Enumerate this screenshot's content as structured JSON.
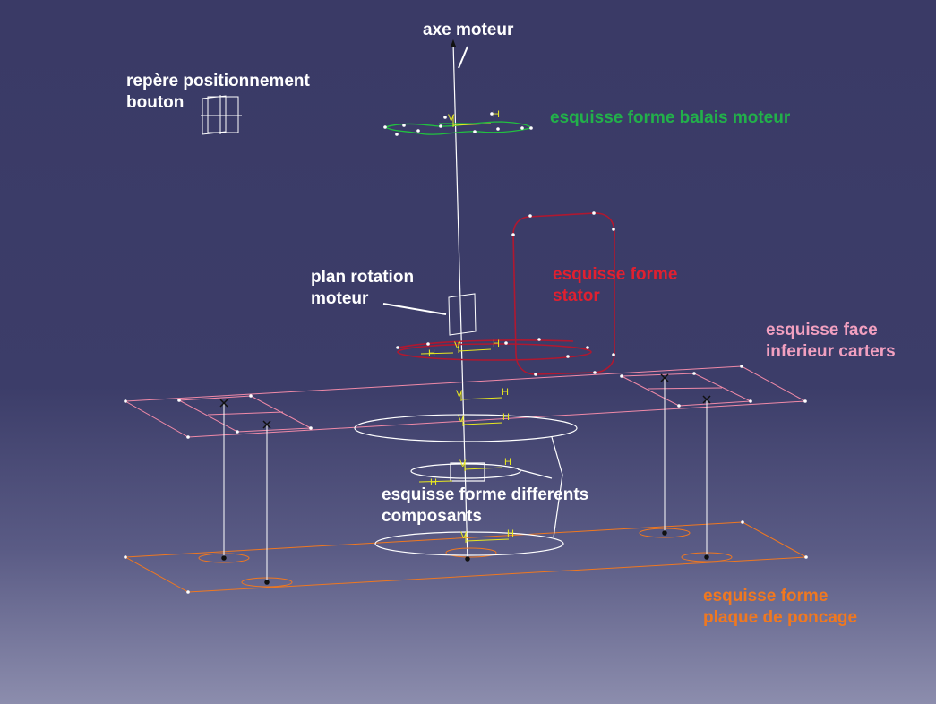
{
  "annotations": {
    "axe_moteur": {
      "text": "axe moteur",
      "color": "#ffffff"
    },
    "repere_bouton": {
      "text": "repère positionnement\nbouton",
      "color": "#ffffff"
    },
    "balais_moteur": {
      "text": "esquisse forme balais moteur",
      "color": "#22b04a"
    },
    "stator": {
      "text": "esquisse forme\nstator",
      "color": "#e02030"
    },
    "plan_rotation": {
      "text": "plan rotation\nmoteur",
      "color": "#ffffff"
    },
    "face_carters": {
      "text": "esquisse face\ninferieur carters",
      "color": "#f2a0c0"
    },
    "composants": {
      "text": "esquisse forme differents\ncomposants",
      "color": "#ffffff"
    },
    "plaque_poncage": {
      "text": "esquisse forme\nplaque de poncage",
      "color": "#f07820"
    }
  },
  "axis_markers": {
    "v": "V",
    "h": "H"
  },
  "colors": {
    "background_top": "#3a3a66",
    "background_bottom": "#8c8dad",
    "carter_plane": "#f08aa8",
    "plate": "#f07820",
    "stator": "#b01830",
    "brush": "#22c040",
    "axis_marker": "#e8e820",
    "wire": "#ffffff"
  }
}
